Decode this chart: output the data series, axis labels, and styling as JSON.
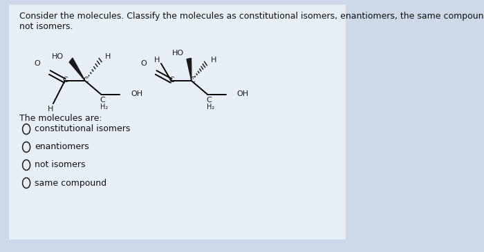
{
  "bg_color": "#cdd8e8",
  "panel_color": "#e8eef5",
  "title_line1": "Consider the molecules. Classify the molecules as constitutional isomers, enantiomers, the same compound, or",
  "title_line2": "not isomers.",
  "subtitle": "The molecules are:",
  "choices": [
    "constitutional isomers",
    "enantiomers",
    "not isomers",
    "same compound"
  ],
  "title_fontsize": 9.0,
  "label_fontsize": 9.0,
  "mol_color": "#1a1a1a",
  "mol_fontsize": 8.0,
  "mol_sub_fontsize": 7.0
}
